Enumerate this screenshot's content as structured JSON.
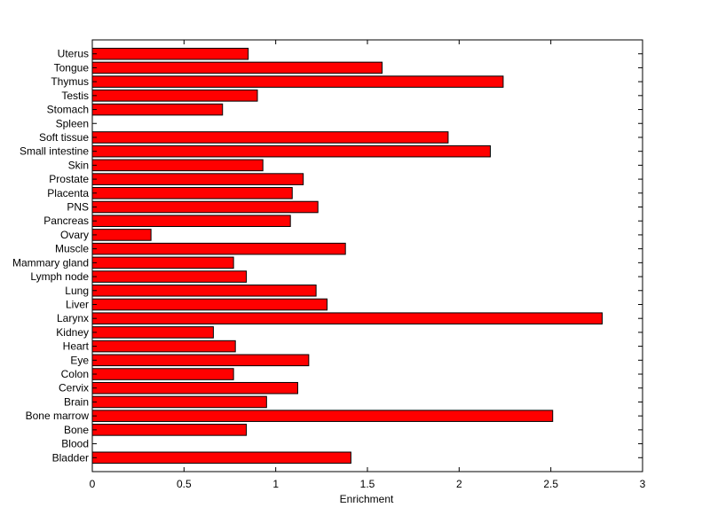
{
  "chart_data": {
    "type": "bar",
    "orientation": "horizontal",
    "title": "",
    "xlabel": "Enrichment",
    "ylabel": "",
    "xlim": [
      0,
      3
    ],
    "xticks": [
      0,
      0.5,
      1,
      1.5,
      2,
      2.5,
      3
    ],
    "xtick_labels": [
      "0",
      "0.5",
      "1",
      "1.5",
      "2",
      "2.5",
      "3"
    ],
    "grid": false,
    "legend": "none",
    "bar_color": "#ff0000",
    "bar_edge_color": "#000000",
    "categories": [
      "Bladder",
      "Blood",
      "Bone",
      "Bone marrow",
      "Brain",
      "Cervix",
      "Colon",
      "Eye",
      "Heart",
      "Kidney",
      "Larynx",
      "Liver",
      "Lung",
      "Lymph node",
      "Mammary gland",
      "Muscle",
      "Ovary",
      "Pancreas",
      "PNS",
      "Placenta",
      "Prostate",
      "Skin",
      "Small intestine",
      "Soft tissue",
      "Spleen",
      "Stomach",
      "Testis",
      "Thymus",
      "Tongue",
      "Uterus"
    ],
    "values": [
      1.41,
      0,
      0.84,
      2.51,
      0.95,
      1.12,
      0.77,
      1.18,
      0.78,
      0.66,
      2.78,
      1.28,
      1.22,
      0.84,
      0.77,
      1.38,
      0.32,
      1.08,
      1.23,
      1.09,
      1.15,
      0.93,
      2.17,
      1.94,
      0,
      0.71,
      0.9,
      2.24,
      1.58,
      0.85
    ]
  }
}
